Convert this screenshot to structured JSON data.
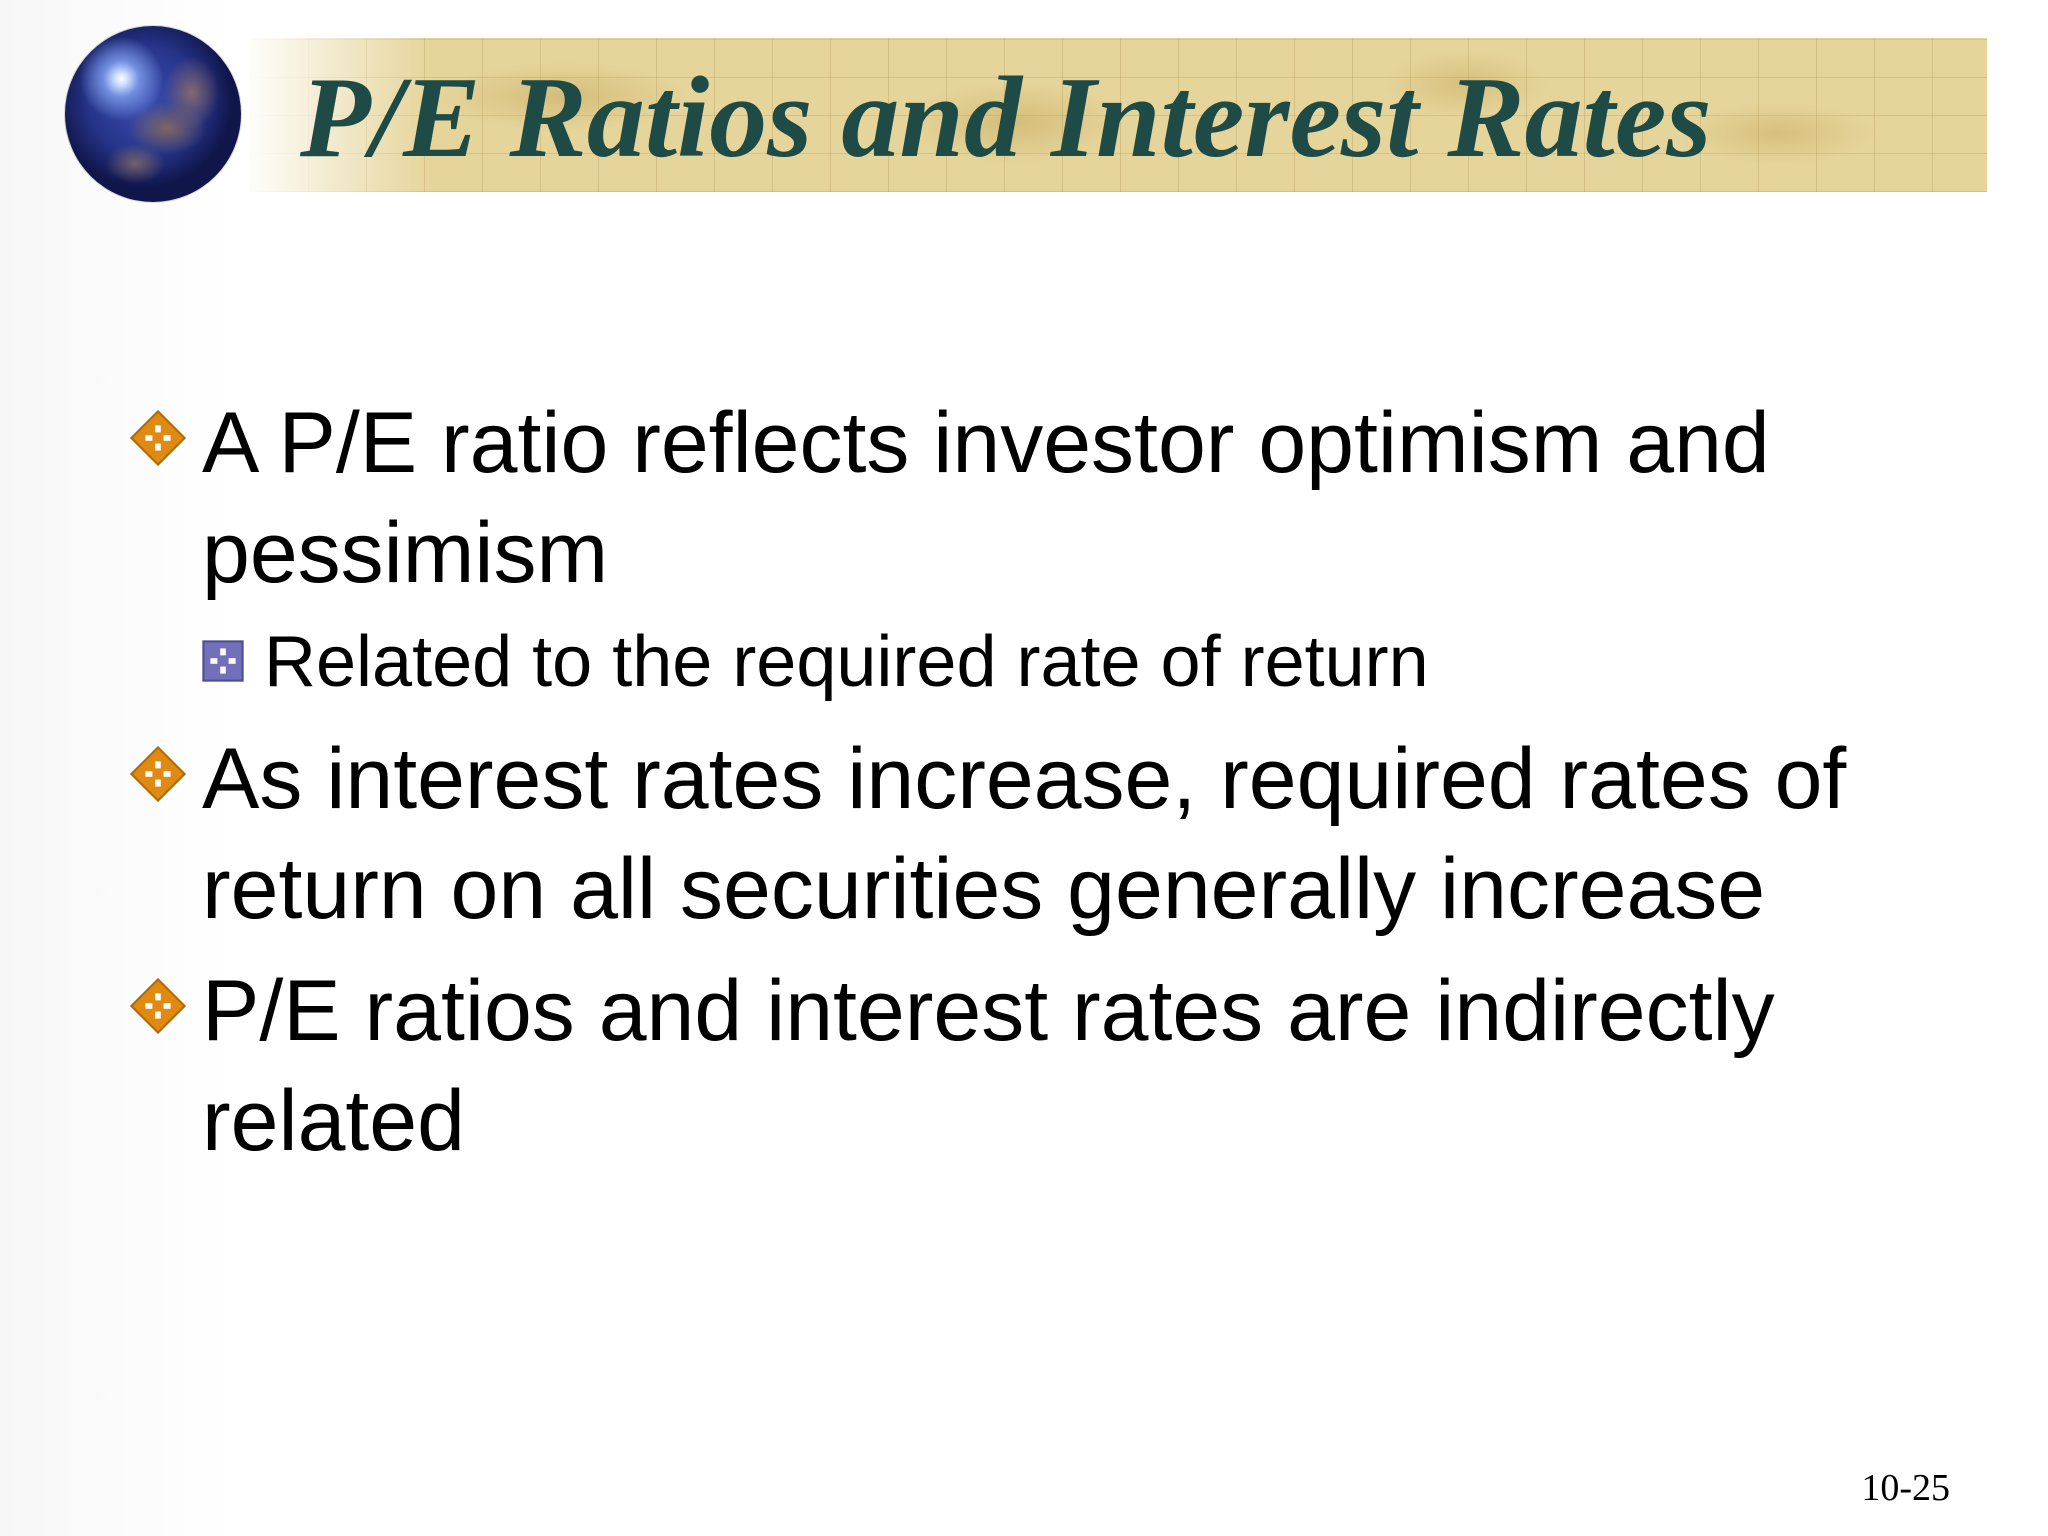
{
  "slide": {
    "title": "P/E Ratios and Interest Rates",
    "slide_number": "10-25",
    "bullets": [
      {
        "text": "A P/E ratio reflects investor optimism and pessimism",
        "sub_bullets": [
          {
            "text": "Related to the required rate of return"
          }
        ]
      },
      {
        "text": "As interest rates increase, required rates of return on all securities generally increase",
        "sub_bullets": []
      },
      {
        "text": "P/E ratios and interest rates are indirectly related",
        "sub_bullets": []
      }
    ]
  },
  "icons": {
    "globe": "globe-icon",
    "bullet": "orange-diamond-bullet-icon",
    "sub_bullet": "purple-square-bullet-icon"
  },
  "colors": {
    "title_text": "#1f4b46",
    "banner": "#e6d59b",
    "bullet_primary": "#e08a12",
    "bullet_secondary": "#7270b8",
    "body_text": "#000000"
  }
}
